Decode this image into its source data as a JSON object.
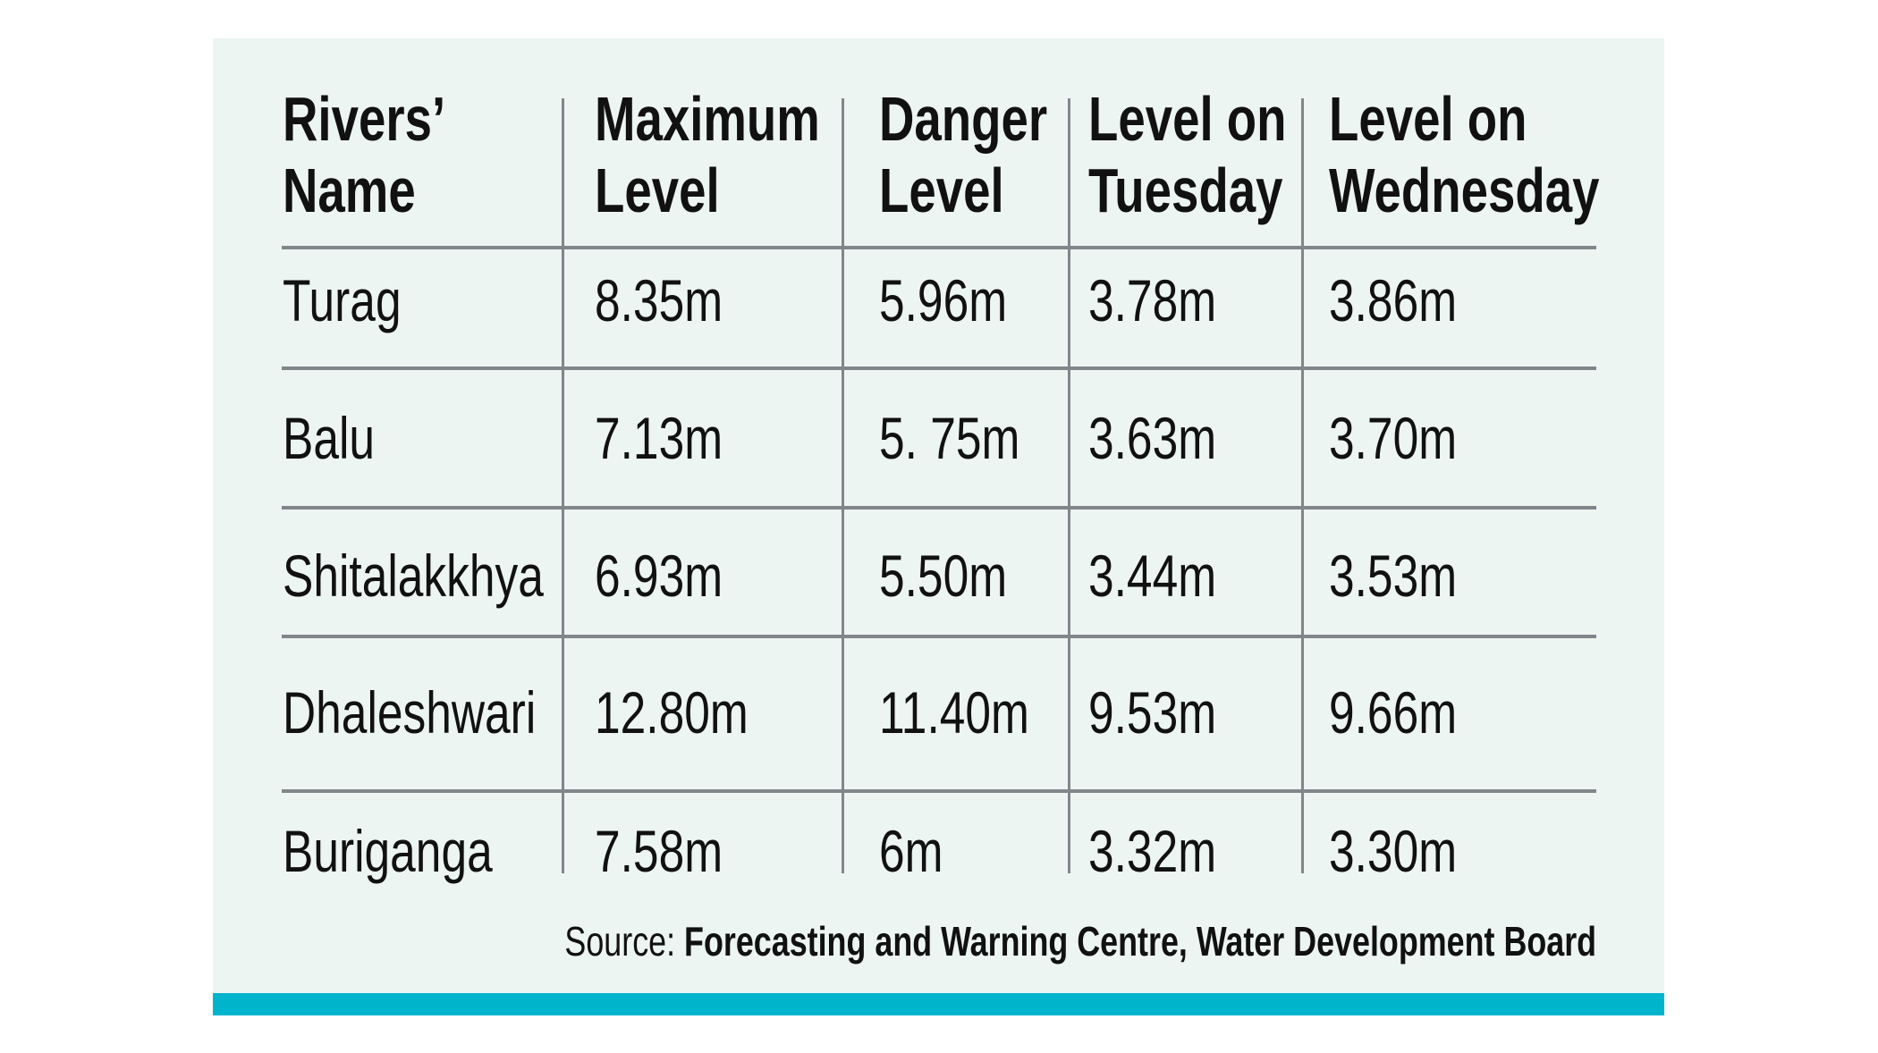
{
  "table": {
    "headers": [
      [
        "Rivers’",
        "Name"
      ],
      [
        "Maximum",
        "Level"
      ],
      [
        "Danger",
        "Level"
      ],
      [
        "Level on",
        "Tuesday"
      ],
      [
        "Level on",
        "Wednesday"
      ]
    ],
    "rows": [
      [
        "Turag",
        "8.35m",
        "5.96m",
        "3.78m",
        "3.86m"
      ],
      [
        "Balu",
        "7.13m",
        "5. 75m",
        "3.63m",
        "3.70m"
      ],
      [
        "Shitalakkhya",
        "6.93m",
        "5.50m",
        "3.44m",
        "3.53m"
      ],
      [
        "Dhaleshwari",
        "12.80m",
        "11.40m",
        "9.53m",
        "9.66m"
      ],
      [
        "Buriganga",
        "7.58m",
        "6m",
        "3.32m",
        "3.30m"
      ]
    ]
  },
  "source": {
    "label": "Source:",
    "text": "Forecasting and Warning Centre, Water Development Board"
  },
  "colors": {
    "panel": "#edf5f3",
    "accent_bar": "#00b4cc",
    "rules": "#80868a"
  }
}
